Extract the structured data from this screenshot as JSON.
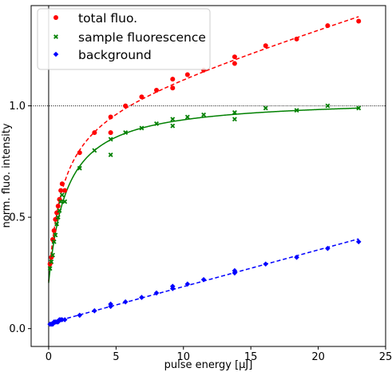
{
  "chart_data": {
    "type": "scatter",
    "title": "",
    "xlabel": "pulse energy [μJ]",
    "ylabel": "norm. fluo. intensity",
    "xlim": [
      -1.3,
      25.0
    ],
    "ylim": [
      -0.08,
      1.45
    ],
    "xticks": [
      0,
      5,
      10,
      15,
      20,
      25
    ],
    "yticks": [
      0.0,
      0.5,
      1.0
    ],
    "ytick_labels": [
      "0.0",
      "0.5",
      "1.0"
    ],
    "reference_line": {
      "y": 1.0,
      "style": "dotted",
      "color": "#000000"
    },
    "vertical_line": {
      "x": 0,
      "color": "#000000"
    },
    "grid": false,
    "legend_position": "top-left",
    "series": [
      {
        "name": "total fluo.",
        "color": "#ff0000",
        "marker": "circle",
        "points": [
          [
            0.1,
            0.29
          ],
          [
            0.2,
            0.32
          ],
          [
            0.3,
            0.4
          ],
          [
            0.4,
            0.44
          ],
          [
            0.5,
            0.49
          ],
          [
            0.6,
            0.52
          ],
          [
            0.7,
            0.55
          ],
          [
            0.8,
            0.58
          ],
          [
            0.9,
            0.62
          ],
          [
            1.0,
            0.65
          ],
          [
            1.2,
            0.62
          ],
          [
            2.3,
            0.79
          ],
          [
            3.4,
            0.88
          ],
          [
            4.6,
            0.95
          ],
          [
            4.6,
            0.88
          ],
          [
            5.7,
            1.0
          ],
          [
            6.9,
            1.04
          ],
          [
            8.0,
            1.07
          ],
          [
            9.2,
            1.12
          ],
          [
            9.2,
            1.08
          ],
          [
            10.3,
            1.14
          ],
          [
            11.5,
            1.16
          ],
          [
            13.8,
            1.19
          ],
          [
            13.8,
            1.22
          ],
          [
            16.1,
            1.27
          ],
          [
            18.4,
            1.3
          ],
          [
            20.7,
            1.36
          ],
          [
            23.0,
            1.38
          ]
        ],
        "fit": {
          "style": "dashed",
          "formula": "saturation_plus_linear"
        }
      },
      {
        "name": "sample fluorescence",
        "color": "#008000",
        "marker": "x",
        "points": [
          [
            0.1,
            0.27
          ],
          [
            0.2,
            0.3
          ],
          [
            0.3,
            0.33
          ],
          [
            0.4,
            0.39
          ],
          [
            0.5,
            0.42
          ],
          [
            0.6,
            0.47
          ],
          [
            0.7,
            0.5
          ],
          [
            0.8,
            0.53
          ],
          [
            0.9,
            0.57
          ],
          [
            1.0,
            0.6
          ],
          [
            1.2,
            0.57
          ],
          [
            2.3,
            0.72
          ],
          [
            3.4,
            0.8
          ],
          [
            4.6,
            0.85
          ],
          [
            4.6,
            0.78
          ],
          [
            5.7,
            0.88
          ],
          [
            6.9,
            0.9
          ],
          [
            8.0,
            0.92
          ],
          [
            9.2,
            0.94
          ],
          [
            9.2,
            0.91
          ],
          [
            10.3,
            0.95
          ],
          [
            11.5,
            0.96
          ],
          [
            13.8,
            0.94
          ],
          [
            13.8,
            0.97
          ],
          [
            16.1,
            0.99
          ],
          [
            18.4,
            0.98
          ],
          [
            20.7,
            1.0
          ],
          [
            23.0,
            0.99
          ]
        ],
        "fit": {
          "style": "solid",
          "formula": "saturation"
        }
      },
      {
        "name": "background",
        "color": "#0000ff",
        "marker": "diamond",
        "points": [
          [
            0.1,
            0.02
          ],
          [
            0.2,
            0.02
          ],
          [
            0.3,
            0.02
          ],
          [
            0.4,
            0.03
          ],
          [
            0.5,
            0.03
          ],
          [
            0.6,
            0.03
          ],
          [
            0.7,
            0.03
          ],
          [
            0.8,
            0.04
          ],
          [
            0.9,
            0.04
          ],
          [
            1.0,
            0.04
          ],
          [
            1.2,
            0.04
          ],
          [
            2.3,
            0.06
          ],
          [
            3.4,
            0.08
          ],
          [
            4.6,
            0.1
          ],
          [
            4.6,
            0.11
          ],
          [
            5.7,
            0.12
          ],
          [
            6.9,
            0.14
          ],
          [
            8.0,
            0.16
          ],
          [
            9.2,
            0.18
          ],
          [
            9.2,
            0.19
          ],
          [
            10.3,
            0.2
          ],
          [
            11.5,
            0.22
          ],
          [
            13.8,
            0.25
          ],
          [
            13.8,
            0.26
          ],
          [
            16.1,
            0.29
          ],
          [
            18.4,
            0.32
          ],
          [
            20.7,
            0.36
          ],
          [
            23.0,
            0.39
          ]
        ],
        "fit": {
          "style": "dashed",
          "formula": "linear"
        }
      }
    ]
  }
}
